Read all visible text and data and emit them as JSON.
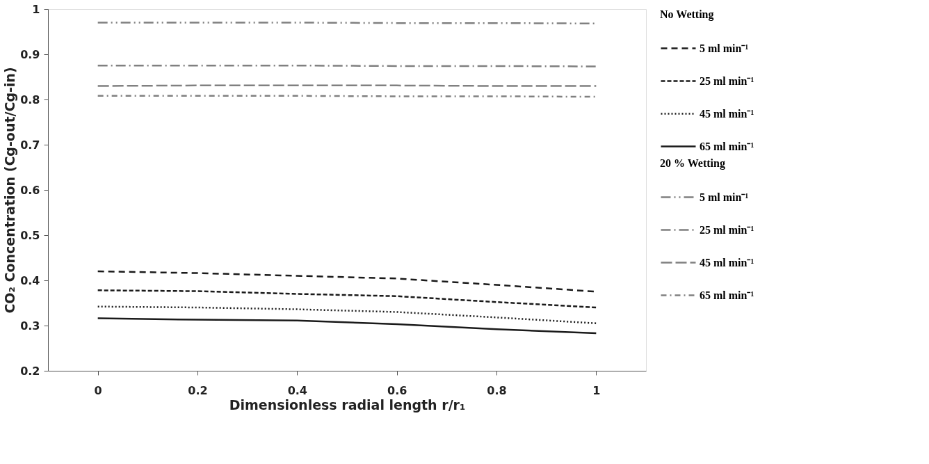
{
  "chart_data": {
    "type": "line",
    "xlabel": "Dimensionless radial length r/r₁",
    "ylabel": "CO₂ Concentration (Cg-out/Cg-in)",
    "legend_title": [
      "No Wetting",
      "20 % Wetting"
    ],
    "legend": "right",
    "x": [
      0,
      0.2,
      0.4,
      0.6,
      0.8,
      1
    ],
    "xlim": [
      -0.1,
      1.1
    ],
    "xticks": [
      0,
      0.2,
      0.4,
      0.6,
      0.8,
      1
    ],
    "ylim": [
      0.2,
      1
    ],
    "yticks": [
      0.2,
      0.3,
      0.4,
      0.5,
      0.6,
      0.7,
      0.8,
      0.9,
      1
    ],
    "grid": false,
    "marker": "none",
    "series": [
      {
        "name": "5 ml min⁻¹",
        "color": "#1a1a1a",
        "line_style": "dashed",
        "values": [
          0.42,
          0.416,
          0.41,
          0.404,
          0.39,
          0.375
        ]
      },
      {
        "name": "25 ml min⁻¹",
        "color": "#1a1a1a",
        "line_style": "dashed",
        "values": [
          0.378,
          0.376,
          0.37,
          0.365,
          0.352,
          0.34
        ]
      },
      {
        "name": "45 ml min⁻¹",
        "color": "#1a1a1a",
        "line_style": "dotted",
        "values": [
          0.342,
          0.34,
          0.336,
          0.33,
          0.318,
          0.305
        ]
      },
      {
        "name": "65 ml min⁻¹",
        "color": "#1a1a1a",
        "line_style": "solid",
        "values": [
          0.316,
          0.313,
          0.311,
          0.303,
          0.292,
          0.283
        ]
      },
      {
        "name": "5 ml min⁻¹",
        "color": "#808080",
        "line_style": "dashed",
        "values": [
          0.97,
          0.97,
          0.97,
          0.969,
          0.969,
          0.968
        ]
      },
      {
        "name": "25 ml min⁻¹",
        "color": "#808080",
        "line_style": "dashed",
        "values": [
          0.875,
          0.875,
          0.875,
          0.874,
          0.874,
          0.873
        ]
      },
      {
        "name": "45 ml min⁻¹",
        "color": "#808080",
        "line_style": "dashed",
        "values": [
          0.83,
          0.831,
          0.831,
          0.831,
          0.83,
          0.83
        ]
      },
      {
        "name": "65 ml min⁻¹",
        "color": "#808080",
        "line_style": "dashed",
        "values": [
          0.808,
          0.808,
          0.808,
          0.807,
          0.807,
          0.806
        ]
      }
    ]
  }
}
